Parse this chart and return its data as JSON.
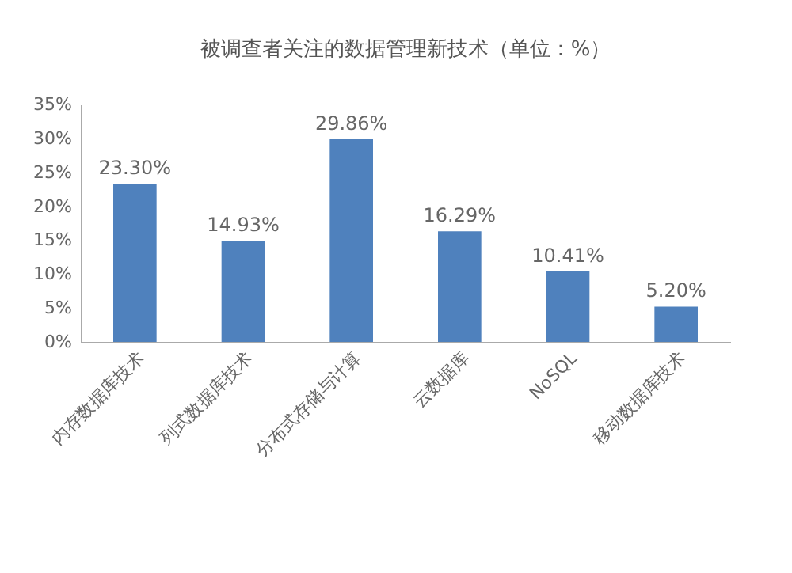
{
  "chart_data": {
    "type": "bar",
    "title": "被调查者关注的数据管理新技术（单位：%）",
    "categories": [
      "内存数据库技术",
      "列式数据库技术",
      "分布式存储与计算",
      "云数据库",
      "NoSQL",
      "移动数据库技术"
    ],
    "values": [
      23.3,
      14.93,
      29.86,
      16.29,
      10.41,
      5.2
    ],
    "value_labels": [
      "23.30%",
      "14.93%",
      "29.86%",
      "16.29%",
      "10.41%",
      "5.20%"
    ],
    "color": "#4f81bd",
    "ylim": [
      0,
      35
    ],
    "yticks": [
      {
        "value": 0,
        "label": "0%"
      },
      {
        "value": 5,
        "label": "5%"
      },
      {
        "value": 10,
        "label": "10%"
      },
      {
        "value": 15,
        "label": "15%"
      },
      {
        "value": 20,
        "label": "20%"
      },
      {
        "value": 25,
        "label": "25%"
      },
      {
        "value": 30,
        "label": "30%"
      },
      {
        "value": 35,
        "label": "35%"
      }
    ],
    "grid": false
  }
}
